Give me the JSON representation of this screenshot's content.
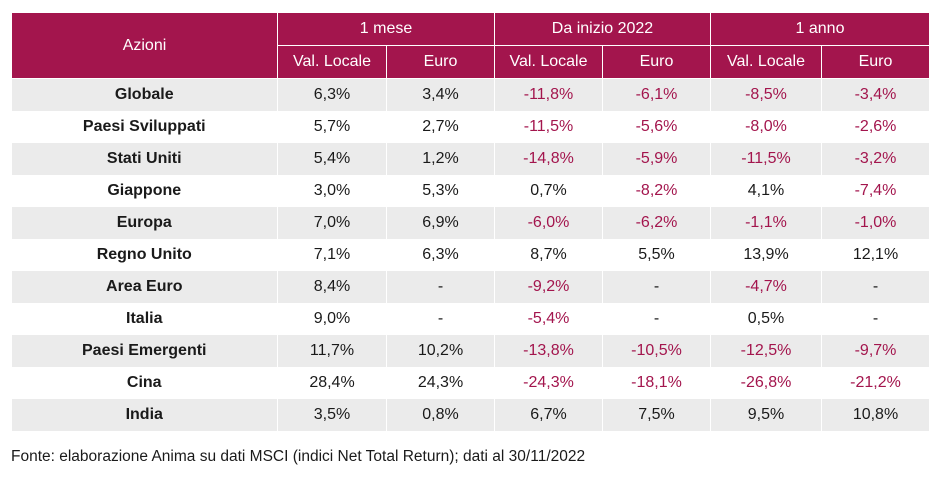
{
  "header": {
    "corner": "Azioni",
    "groups": [
      "1 mese",
      "Da inizio 2022",
      "1 anno"
    ],
    "subheaders": [
      "Val. Locale",
      "Euro",
      "Val. Locale",
      "Euro",
      "Val. Locale",
      "Euro"
    ]
  },
  "rows": [
    {
      "name": "Globale",
      "values": [
        "6,3%",
        "3,4%",
        "-11,8%",
        "-6,1%",
        "-8,5%",
        "-3,4%"
      ]
    },
    {
      "name": "Paesi Sviluppati",
      "values": [
        "5,7%",
        "2,7%",
        "-11,5%",
        "-5,6%",
        "-8,0%",
        "-2,6%"
      ]
    },
    {
      "name": "Stati Uniti",
      "values": [
        "5,4%",
        "1,2%",
        "-14,8%",
        "-5,9%",
        "-11,5%",
        "-3,2%"
      ]
    },
    {
      "name": "Giappone",
      "values": [
        "3,0%",
        "5,3%",
        "0,7%",
        "-8,2%",
        "4,1%",
        "-7,4%"
      ]
    },
    {
      "name": "Europa",
      "values": [
        "7,0%",
        "6,9%",
        "-6,0%",
        "-6,2%",
        "-1,1%",
        "-1,0%"
      ]
    },
    {
      "name": "Regno Unito",
      "values": [
        "7,1%",
        "6,3%",
        "8,7%",
        "5,5%",
        "13,9%",
        "12,1%"
      ]
    },
    {
      "name": "Area Euro",
      "values": [
        "8,4%",
        "-",
        "-9,2%",
        "-",
        "-4,7%",
        "-"
      ]
    },
    {
      "name": "Italia",
      "values": [
        "9,0%",
        "-",
        "-5,4%",
        "-",
        "0,5%",
        "-"
      ]
    },
    {
      "name": "Paesi Emergenti",
      "values": [
        "11,7%",
        "10,2%",
        "-13,8%",
        "-10,5%",
        "-12,5%",
        "-9,7%"
      ]
    },
    {
      "name": "Cina",
      "values": [
        "28,4%",
        "24,3%",
        "-24,3%",
        "-18,1%",
        "-26,8%",
        "-21,2%"
      ]
    },
    {
      "name": "India",
      "values": [
        "3,5%",
        "0,8%",
        "6,7%",
        "7,5%",
        "9,5%",
        "10,8%"
      ]
    }
  ],
  "footer": "Fonte: elaborazione Anima su dati MSCI (indici Net Total Return); dati al 30/11/2022",
  "colors": {
    "header_bg": "#a3154d",
    "negative_text": "#a3154d",
    "stripe": "#ebebeb"
  }
}
